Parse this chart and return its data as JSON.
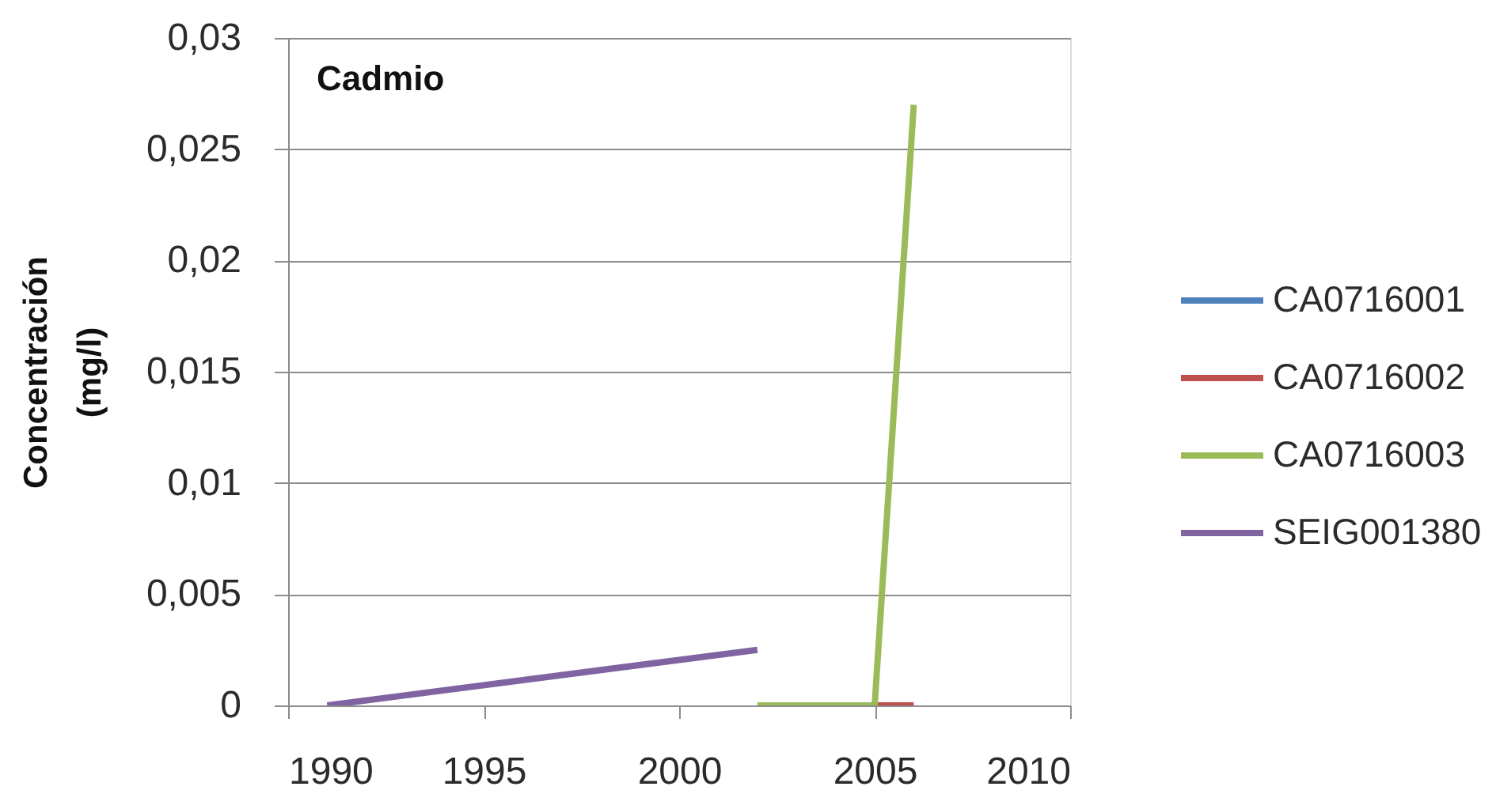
{
  "chart_data": {
    "type": "line",
    "title": "Cadmio",
    "ylabel": "Concentración (mg/l)",
    "xlim": [
      1990,
      2010
    ],
    "xticks": [
      1990,
      1995,
      2000,
      2005,
      2010
    ],
    "ylim": [
      0,
      0.03
    ],
    "yticks": [
      0,
      {
        "value": 0.005,
        "label": "0,005"
      },
      {
        "value": 0.01,
        "label": "0,01"
      },
      {
        "value": 0.015,
        "label": "0,015"
      },
      {
        "value": 0.02,
        "label": "0,02"
      },
      {
        "value": 0.025,
        "label": "0,025"
      },
      {
        "value": 0.03,
        "label": "0,03"
      }
    ],
    "grid": "y",
    "legend": "right",
    "marker": "none",
    "line_style": "solid",
    "series": [
      {
        "name": "CA0716001",
        "color": "#4f81bd"
      },
      {
        "name": "CA0716002",
        "color": "#c0504d",
        "x": [
          2005,
          2006
        ],
        "values": [
          0,
          0
        ]
      },
      {
        "name": "CA0716003",
        "color": "#9bbb59",
        "x": [
          2002,
          2005,
          2006
        ],
        "values": [
          0,
          0,
          0.027
        ]
      },
      {
        "name": "SEIG001380",
        "color": "#8064a2",
        "x": [
          1991,
          2002
        ],
        "values": [
          0,
          0.0025
        ]
      }
    ]
  }
}
